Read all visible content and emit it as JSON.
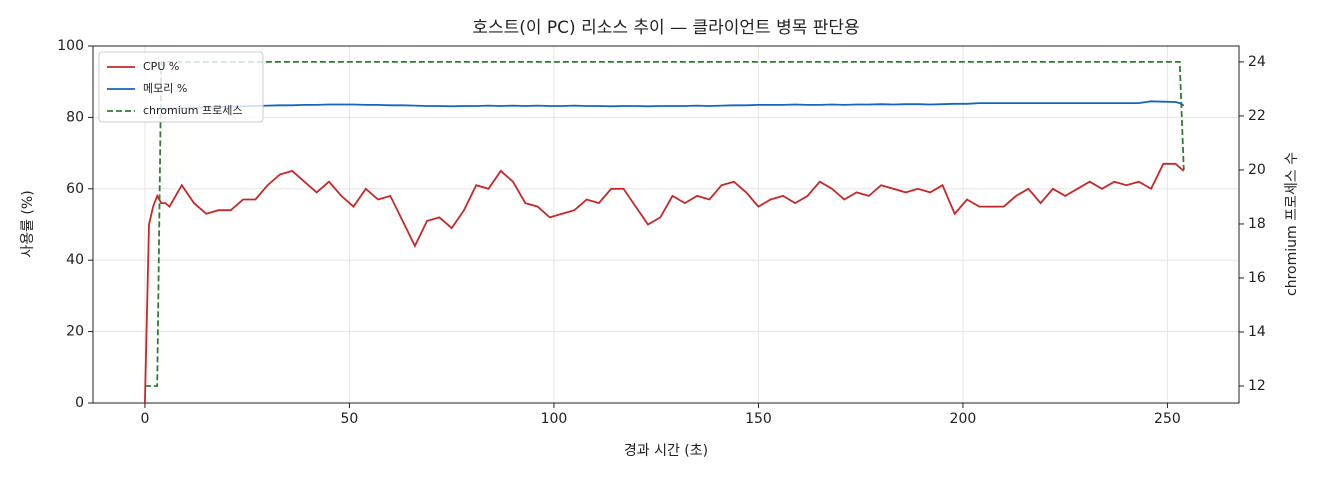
{
  "chart_data": {
    "type": "line",
    "title": "호스트(이 PC) 리소스 추이 — 클라이언트 병목 판단용",
    "xlabel": "경과 시간 (초)",
    "ylabel": "사용률 (%)",
    "y2label": "chromium 프로세스 수",
    "x": [
      0,
      1,
      2,
      3,
      4,
      5,
      6,
      9,
      12,
      15,
      18,
      21,
      24,
      27,
      30,
      33,
      36,
      39,
      42,
      45,
      48,
      51,
      54,
      57,
      60,
      63,
      66,
      69,
      72,
      75,
      78,
      81,
      84,
      87,
      90,
      93,
      96,
      99,
      102,
      105,
      108,
      111,
      114,
      117,
      120,
      123,
      126,
      129,
      132,
      135,
      138,
      141,
      144,
      147,
      150,
      153,
      156,
      159,
      162,
      165,
      168,
      171,
      174,
      177,
      180,
      183,
      186,
      189,
      192,
      195,
      198,
      201,
      204,
      207,
      210,
      213,
      216,
      219,
      222,
      225,
      228,
      231,
      234,
      237,
      240,
      243,
      246,
      249,
      252,
      253,
      254
    ],
    "series": [
      {
        "name": "CPU %",
        "color": "#c62828",
        "linestyle": "solid",
        "axis": "y",
        "values": [
          0,
          50,
          55,
          58,
          56,
          56,
          55,
          61,
          56,
          53,
          54,
          54,
          57,
          57,
          61,
          64,
          65,
          62,
          59,
          62,
          58,
          55,
          60,
          57,
          58,
          51,
          44,
          51,
          52,
          49,
          54,
          61,
          60,
          65,
          62,
          56,
          55,
          52,
          53,
          54,
          57,
          56,
          60,
          60,
          55,
          50,
          52,
          58,
          56,
          58,
          57,
          61,
          62,
          59,
          55,
          57,
          58,
          56,
          58,
          62,
          60,
          57,
          59,
          58,
          61,
          60,
          59,
          60,
          59,
          61,
          53,
          57,
          55,
          55,
          55,
          58,
          60,
          56,
          60,
          58,
          60,
          62,
          60,
          62,
          61,
          62,
          60,
          67,
          67,
          66,
          65
        ]
      },
      {
        "name": "메모리 %",
        "color": "#1565c0",
        "linestyle": "solid",
        "axis": "y",
        "values": [
          null,
          null,
          null,
          82.2,
          82.3,
          82.4,
          82.5,
          82.6,
          82.7,
          82.8,
          82.9,
          83.0,
          83.1,
          83.2,
          83.3,
          83.4,
          83.4,
          83.5,
          83.5,
          83.6,
          83.6,
          83.6,
          83.5,
          83.5,
          83.4,
          83.4,
          83.3,
          83.2,
          83.2,
          83.1,
          83.2,
          83.2,
          83.3,
          83.2,
          83.3,
          83.2,
          83.3,
          83.2,
          83.2,
          83.3,
          83.2,
          83.2,
          83.1,
          83.2,
          83.2,
          83.1,
          83.2,
          83.2,
          83.2,
          83.3,
          83.2,
          83.3,
          83.4,
          83.4,
          83.5,
          83.5,
          83.5,
          83.6,
          83.5,
          83.5,
          83.6,
          83.5,
          83.6,
          83.6,
          83.7,
          83.6,
          83.7,
          83.7,
          83.6,
          83.7,
          83.8,
          83.8,
          84.0,
          84.0,
          84.0,
          84.0,
          84.0,
          84.0,
          84.0,
          84.0,
          84.0,
          84.0,
          84.0,
          84.0,
          84.0,
          84.0,
          84.5,
          84.4,
          84.3,
          84.0,
          83.3
        ]
      },
      {
        "name": "chromium 프로세스",
        "color": "#2e7d32",
        "linestyle": "dashed",
        "axis": "y2",
        "values": [
          12,
          12,
          12,
          12,
          24,
          24,
          24,
          24,
          24,
          24,
          24,
          24,
          24,
          24,
          24,
          24,
          24,
          24,
          24,
          24,
          24,
          24,
          24,
          24,
          24,
          24,
          24,
          24,
          24,
          24,
          24,
          24,
          24,
          24,
          24,
          24,
          24,
          24,
          24,
          24,
          24,
          24,
          24,
          24,
          24,
          24,
          24,
          24,
          24,
          24,
          24,
          24,
          24,
          24,
          24,
          24,
          24,
          24,
          24,
          24,
          24,
          24,
          24,
          24,
          24,
          24,
          24,
          24,
          24,
          24,
          24,
          24,
          24,
          24,
          24,
          24,
          24,
          24,
          24,
          24,
          24,
          24,
          24,
          24,
          24,
          24,
          24,
          24,
          24,
          24,
          20
        ]
      }
    ],
    "xlim": [
      -12.7,
      267.5
    ],
    "xticks": [
      0,
      50,
      100,
      150,
      200,
      250
    ],
    "ylim": [
      0,
      100
    ],
    "yticks": [
      0,
      20,
      40,
      60,
      80,
      100
    ],
    "y2lim": [
      11.37,
      24.59
    ],
    "y2ticks": [
      12,
      14,
      16,
      18,
      20,
      22,
      24
    ],
    "grid": true,
    "legend": "upper left"
  }
}
